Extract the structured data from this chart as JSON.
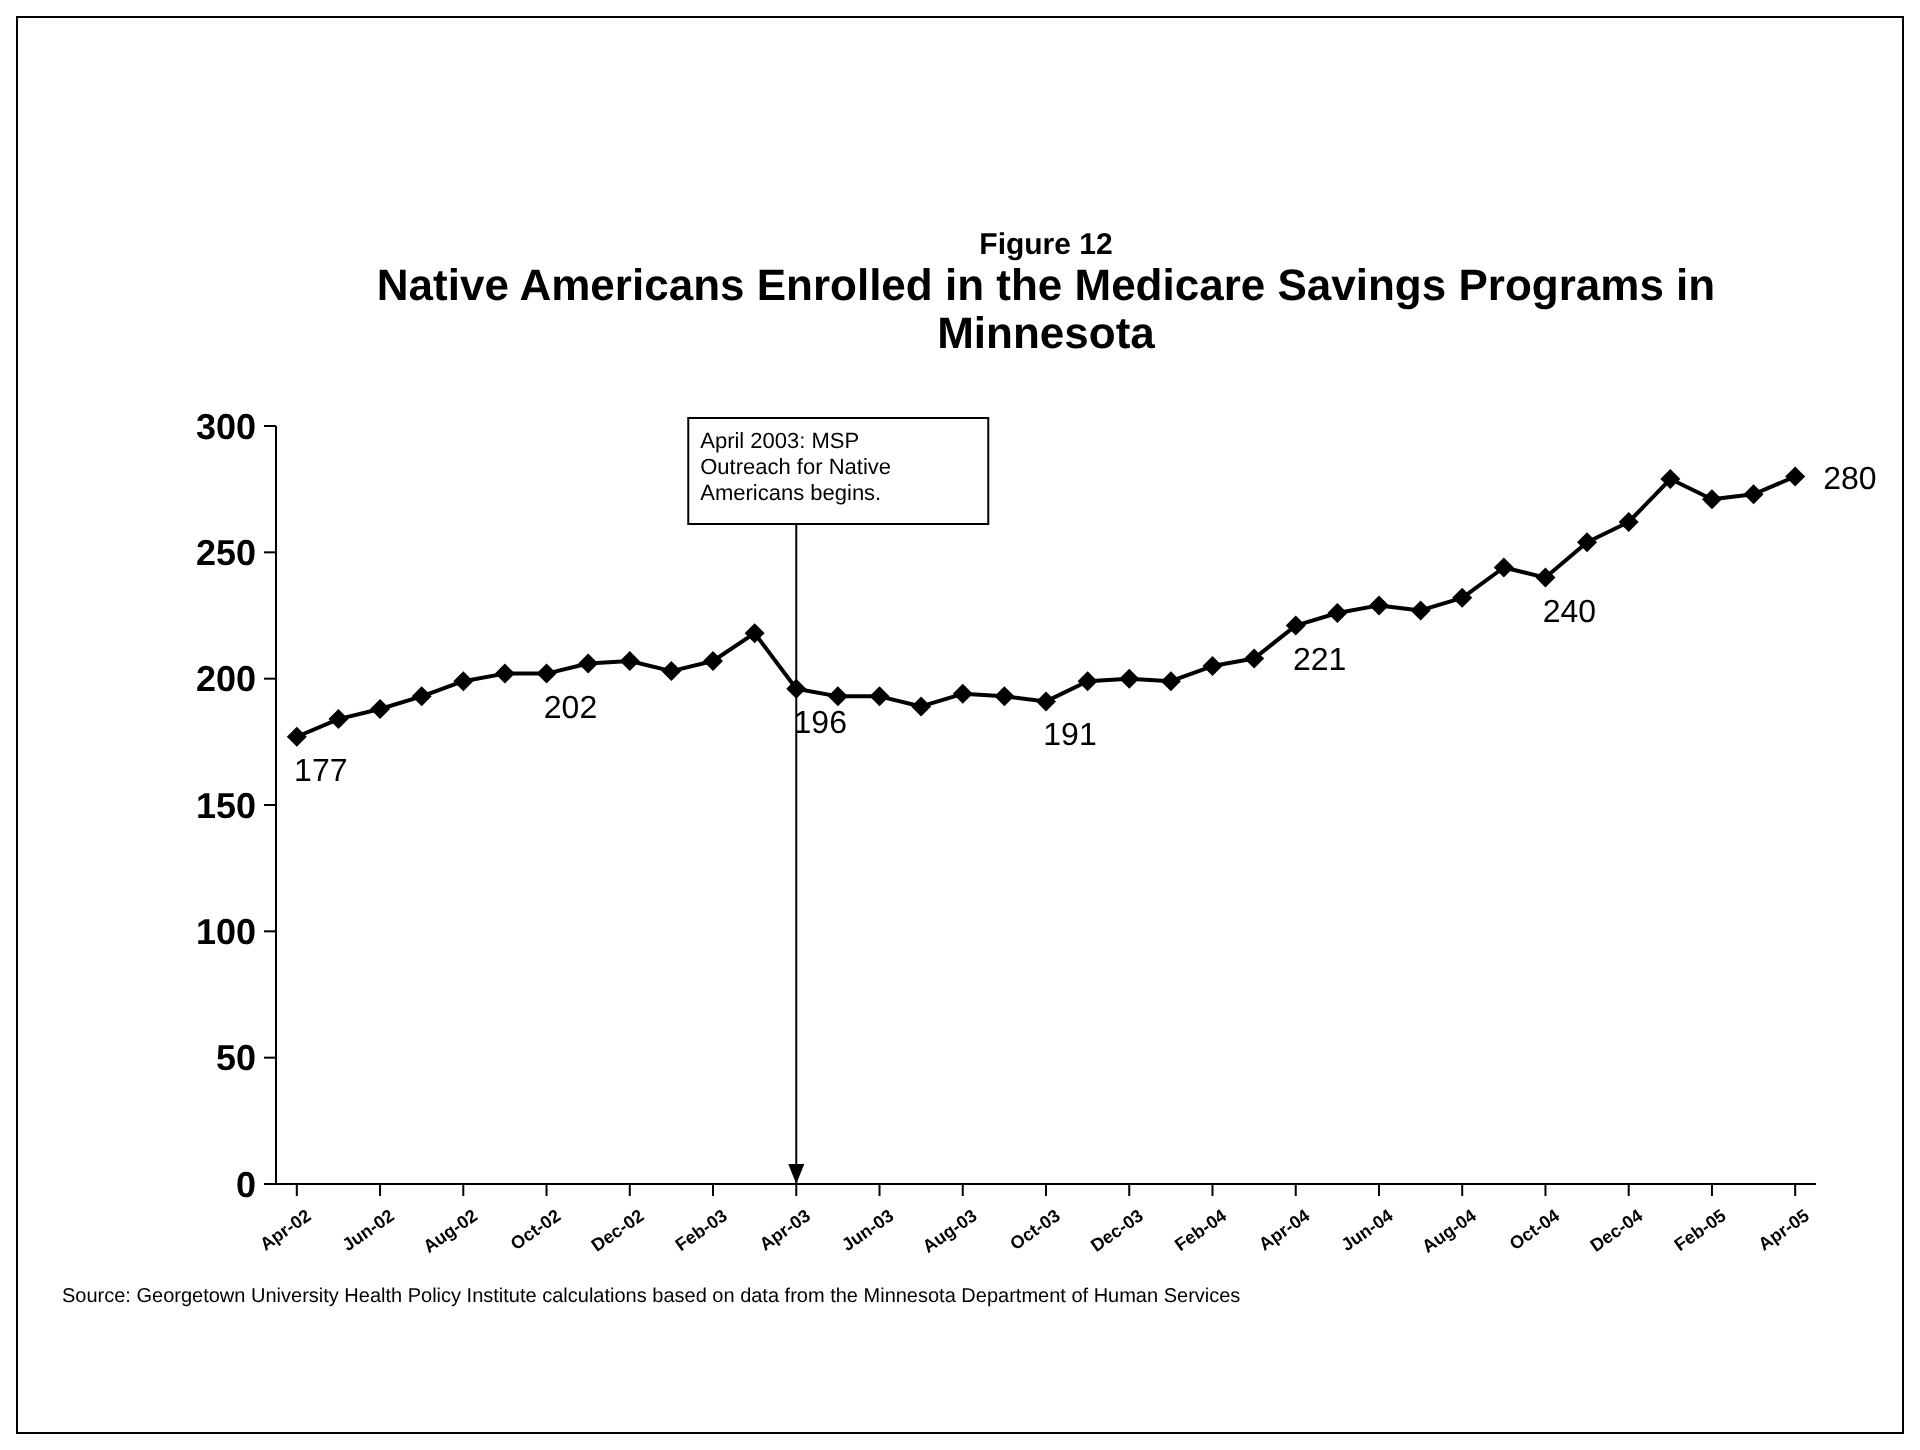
{
  "chart_data": {
    "type": "line",
    "subtitle": "Figure 12",
    "title": "Native Americans Enrolled in the Medicare Savings Programs in Minnesota",
    "categories": [
      "Apr-02",
      null,
      "Jun-02",
      null,
      "Aug-02",
      null,
      "Oct-02",
      null,
      "Dec-02",
      null,
      "Feb-03",
      null,
      "Apr-03",
      null,
      "Jun-03",
      null,
      "Aug-03",
      null,
      "Oct-03",
      null,
      "Dec-03",
      null,
      "Feb-04",
      null,
      "Apr-04",
      null,
      "Jun-04",
      null,
      "Aug-04",
      null,
      "Oct-04",
      null,
      "Dec-04",
      null,
      "Feb-05",
      null,
      "Apr-05"
    ],
    "series": [
      {
        "color": "#000000",
        "values": [
          177,
          184,
          188,
          193,
          199,
          202,
          202,
          206,
          207,
          203,
          207,
          218,
          196,
          193,
          193,
          189,
          194,
          193,
          191,
          199,
          200,
          199,
          205,
          208,
          221,
          226,
          229,
          227,
          232,
          244,
          240,
          254,
          262,
          279,
          271,
          273,
          280
        ],
        "value_labels": [
          "177",
          null,
          null,
          null,
          null,
          null,
          "202",
          null,
          null,
          null,
          null,
          null,
          "196",
          null,
          null,
          null,
          null,
          null,
          "191",
          null,
          null,
          null,
          null,
          null,
          "221",
          null,
          null,
          null,
          null,
          null,
          "240",
          null,
          null,
          null,
          null,
          null,
          "280"
        ]
      }
    ],
    "ylim": [
      0,
      300
    ],
    "yticks": [
      0,
      50,
      100,
      150,
      200,
      250,
      300
    ],
    "grid": false,
    "legend": false,
    "marker": "diamond",
    "line_style": "solid",
    "ref_lines": [
      {
        "axis": "x",
        "value": "Apr-03",
        "label": "April 2003: MSP Outreach for Native Americans begins.",
        "color": "#000000"
      }
    ],
    "annotations": [
      "Source: Georgetown University Health Policy Institute calculations based on data from the Minnesota Department of Human Services"
    ]
  }
}
